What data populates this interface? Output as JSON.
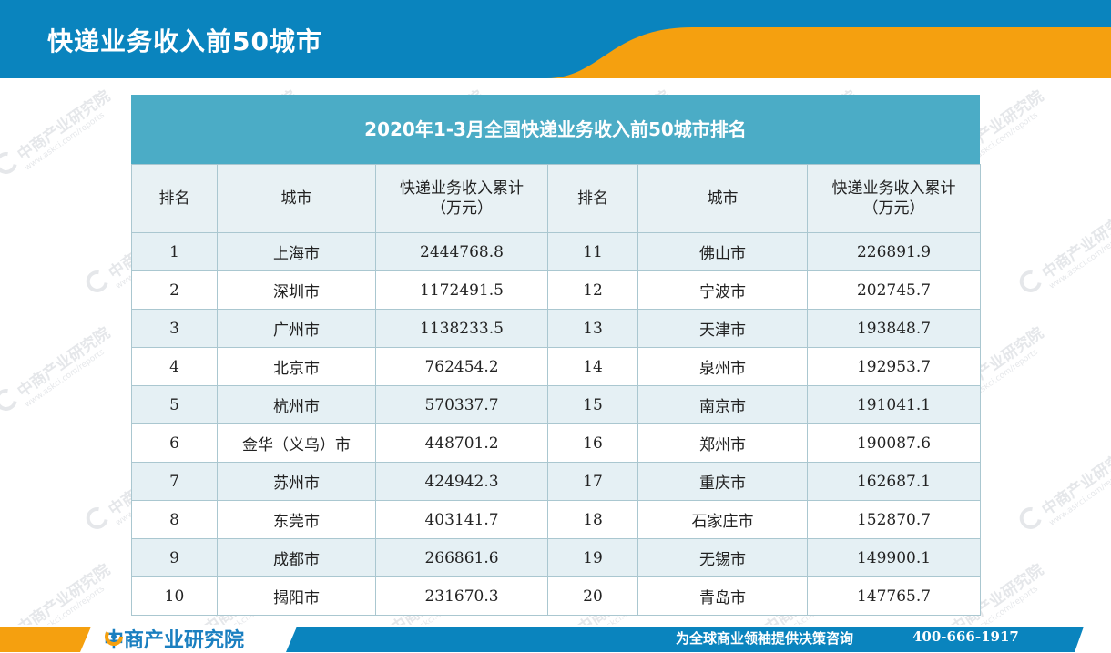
{
  "header": {
    "title": "快递业务收入前50城市"
  },
  "table": {
    "caption": "2020年1-3月全国快递业务收入前50城市排名",
    "columns": [
      "排名",
      "城市",
      "快递业务收入累计\n（万元）",
      "排名",
      "城市",
      "快递业务收入累计\n（万元）"
    ],
    "rows": [
      [
        "1",
        "上海市",
        "2444768.8",
        "11",
        "佛山市",
        "226891.9"
      ],
      [
        "2",
        "深圳市",
        "1172491.5",
        "12",
        "宁波市",
        "202745.7"
      ],
      [
        "3",
        "广州市",
        "1138233.5",
        "13",
        "天津市",
        "193848.7"
      ],
      [
        "4",
        "北京市",
        "762454.2",
        "14",
        "泉州市",
        "192953.7"
      ],
      [
        "5",
        "杭州市",
        "570337.7",
        "15",
        "南京市",
        "191041.1"
      ],
      [
        "6",
        "金华（义乌）市",
        "448701.2",
        "16",
        "郑州市",
        "190087.6"
      ],
      [
        "7",
        "苏州市",
        "424942.3",
        "17",
        "重庆市",
        "162687.1"
      ],
      [
        "8",
        "东莞市",
        "403141.7",
        "18",
        "石家庄市",
        "152870.7"
      ],
      [
        "9",
        "成都市",
        "266861.6",
        "19",
        "无锡市",
        "149900.1"
      ],
      [
        "10",
        "揭阳市",
        "231670.3",
        "20",
        "青岛市",
        "147765.7"
      ]
    ]
  },
  "watermark": {
    "text": "中商产业研究院",
    "url": "www.askci.com/reports"
  },
  "footer": {
    "logo_text": "中商产业研究院",
    "slogan": "为全球商业领袖提供决策咨询",
    "phone": "400-666-1917"
  },
  "colors": {
    "header_blue": "#0a84be",
    "accent_orange": "#f5a00f",
    "table_header": "#4bacc6",
    "row_stripe": "#e5f0f4"
  }
}
